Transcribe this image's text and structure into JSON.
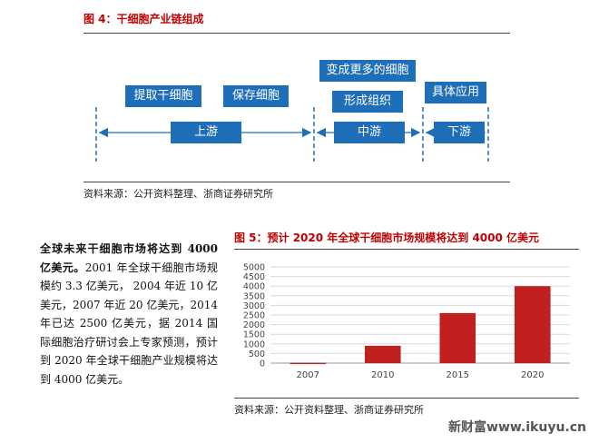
{
  "figure4": {
    "title": "图 4：干细胞产业链组成",
    "boxes": {
      "extract": "提取干细胞",
      "preserve": "保存细胞",
      "transform": "变成更多的细胞",
      "form_tissue": "形成组织",
      "application": "具体应用",
      "upstream": "上游",
      "midstream": "中游",
      "downstream": "下游"
    },
    "source": "资料来源：公开资料整理、浙商证券研究所"
  },
  "text": {
    "lead": "全球未来干细胞市场将达到 4000 亿美元。",
    "body": "2001 年全球干细胞市场规模约 3.3 亿美元， 2004 年近 10 亿美元，2007 年近 20 亿美元，2014 年已达 2500 亿美元，据 2014 国际细胞治疗研讨会上专家预测，预计到 2020 年全球干细胞产业规模将达到 4000 亿美元。"
  },
  "figure5": {
    "title": "图 5：预计 2020 年全球干细胞市场规模将达到 4000 亿美元",
    "source": "资料来源：公开资料整理、浙商证券研究所"
  },
  "chart_data": {
    "type": "bar",
    "title": "图 5：预计 2020 年全球干细胞市场规模将达到 4000 亿美元",
    "categories": [
      "2007",
      "2010",
      "2015",
      "2020"
    ],
    "values": [
      20,
      900,
      2600,
      4000
    ],
    "yticks": [
      "0",
      "500",
      "1000",
      "1500",
      "2000",
      "2500",
      "3000",
      "3500",
      "4000",
      "4500",
      "5000"
    ],
    "ylim": [
      0,
      5000
    ],
    "grid": true,
    "bar_color": "#c0211f"
  },
  "watermark": "新财富www.ikuyu.cn"
}
